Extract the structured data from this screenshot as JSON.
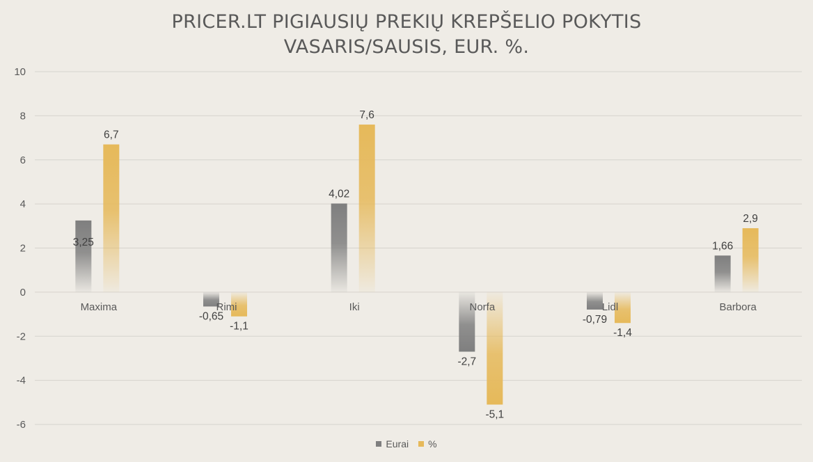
{
  "title_lines": [
    "PRICER.LT PIGIAUSIŲ PREKIŲ KREPŠELIO POKYTIS",
    "VASARIS/SAUSIS, EUR. %."
  ],
  "colors": {
    "eurai": "#7f7f7f",
    "percent": "#e6b95a",
    "grid": "#d6d3cd",
    "background": "#efece6"
  },
  "chart_data": {
    "type": "bar",
    "title": "PRICER.LT PIGIAUSIŲ PREKIŲ KREPŠELIO POKYTIS VASARIS/SAUSIS, EUR. %.",
    "categories": [
      "Maxima",
      "Rimi",
      "Iki",
      "Norfa",
      "Lidl",
      "Barbora"
    ],
    "series": [
      {
        "name": "Eurai",
        "values": [
          3.25,
          -0.65,
          4.02,
          -2.7,
          -0.79,
          1.66
        ],
        "labels": [
          "3,25",
          "-0,65",
          "4,02",
          "-2,7",
          "-0,79",
          "1,66"
        ]
      },
      {
        "name": "%",
        "values": [
          6.7,
          -1.1,
          7.6,
          -5.1,
          -1.4,
          2.9
        ],
        "labels": [
          "6,7",
          "-1,1",
          "7,6",
          "-5,1",
          "-1,4",
          "2,9"
        ]
      }
    ],
    "ylim": [
      -6,
      10
    ],
    "yticks": [
      10,
      8,
      6,
      4,
      2,
      0,
      -2,
      -4,
      -6
    ],
    "grid": true,
    "legend": "bottom"
  }
}
